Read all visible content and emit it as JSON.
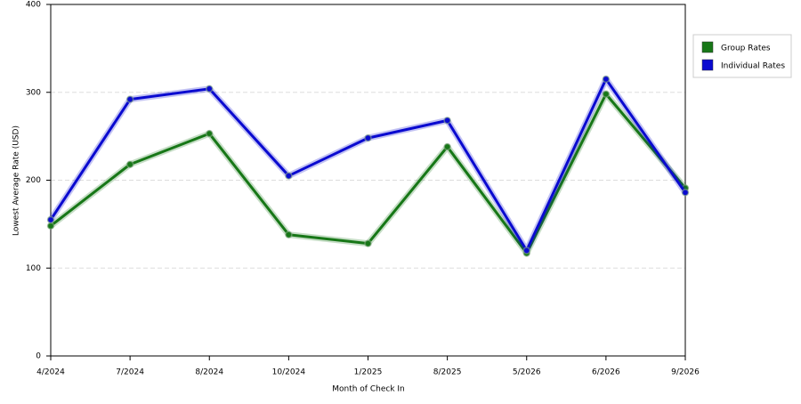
{
  "chart_data": {
    "type": "line",
    "x_label": "Month of Check In",
    "y_label": "Lowest Average Rate (USD)",
    "categories": [
      "4/2024",
      "7/2024",
      "8/2024",
      "10/2024",
      "1/2025",
      "8/2025",
      "5/2026",
      "6/2026",
      "9/2026"
    ],
    "series": [
      {
        "name": "Group Rates",
        "color": "#177717",
        "values": [
          148,
          218,
          253,
          138,
          128,
          238,
          117,
          298,
          191
        ]
      },
      {
        "name": "Individual Rates",
        "color": "#0a0ad0",
        "values": [
          155,
          292,
          304,
          205,
          248,
          268,
          120,
          315,
          186
        ]
      }
    ],
    "ylim": [
      0,
      400
    ],
    "yticks": [
      0,
      100,
      200,
      300,
      400
    ],
    "grid": true,
    "legend": "right"
  }
}
